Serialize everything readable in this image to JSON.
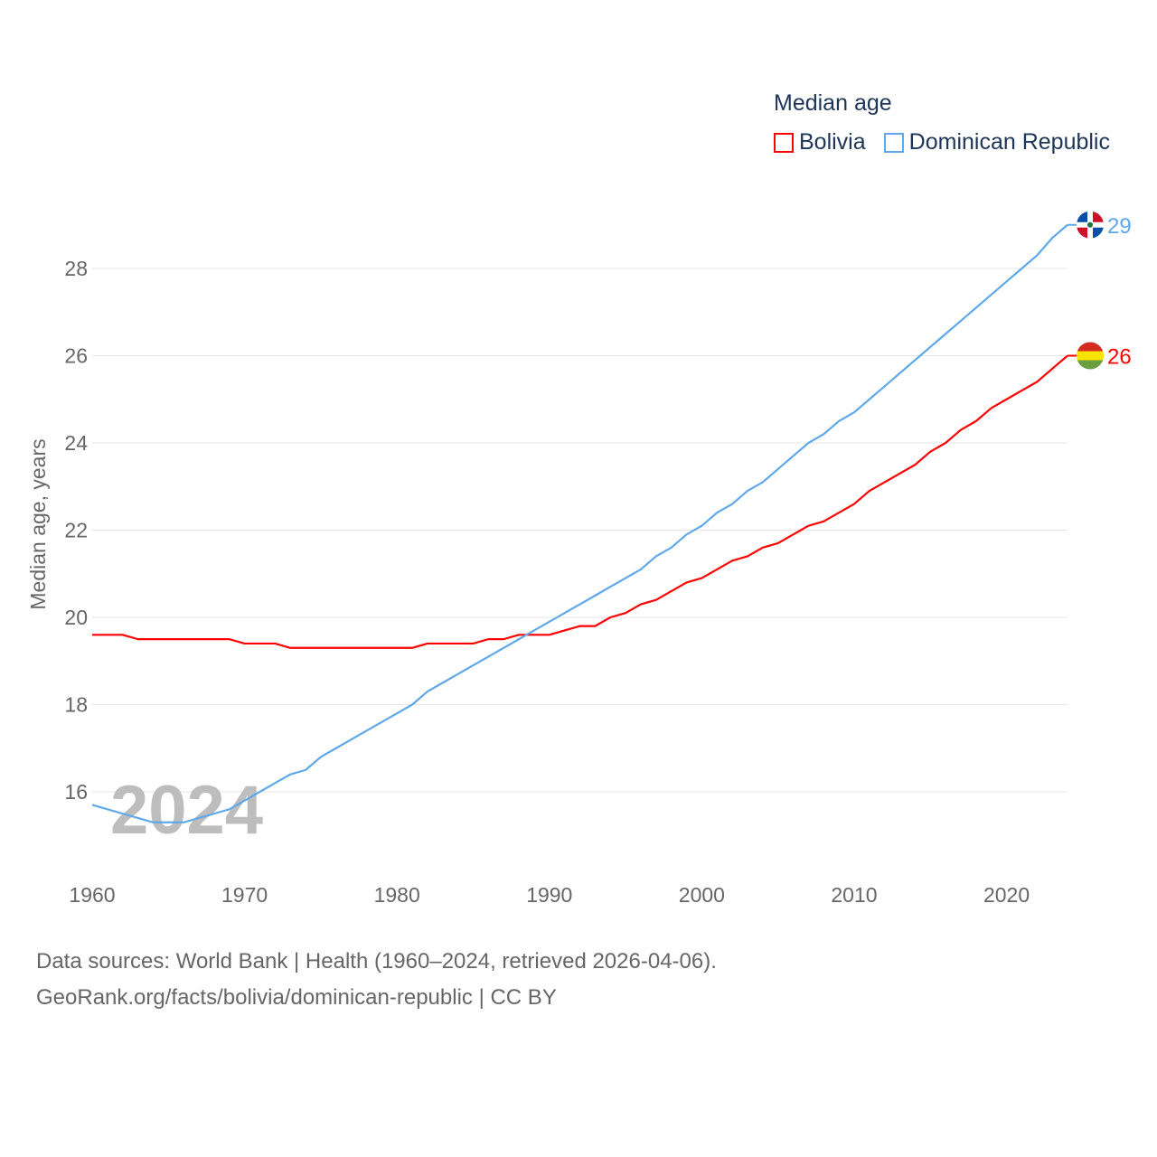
{
  "chart_data": {
    "type": "line",
    "title": "Median age",
    "ylabel": "Median age, years",
    "xlabel": "",
    "xlim": [
      1960,
      2024
    ],
    "ylim": [
      14.6,
      29.4
    ],
    "xticks": [
      1960,
      1970,
      1980,
      1990,
      2000,
      2010,
      2020
    ],
    "yticks": [
      16,
      18,
      20,
      22,
      24,
      26,
      28
    ],
    "grid": true,
    "legend_position": "top-right",
    "year_watermark": "2024",
    "x": [
      1960,
      1961,
      1962,
      1963,
      1964,
      1965,
      1966,
      1967,
      1968,
      1969,
      1970,
      1971,
      1972,
      1973,
      1974,
      1975,
      1976,
      1977,
      1978,
      1979,
      1980,
      1981,
      1982,
      1983,
      1984,
      1985,
      1986,
      1987,
      1988,
      1989,
      1990,
      1991,
      1992,
      1993,
      1994,
      1995,
      1996,
      1997,
      1998,
      1999,
      2000,
      2001,
      2002,
      2003,
      2004,
      2005,
      2006,
      2007,
      2008,
      2009,
      2010,
      2011,
      2012,
      2013,
      2014,
      2015,
      2016,
      2017,
      2018,
      2019,
      2020,
      2021,
      2022,
      2023,
      2024
    ],
    "series": [
      {
        "name": "Bolivia",
        "color": "#ff0000",
        "end_label": "26",
        "flag": "bolivia-flag",
        "values": [
          19.6,
          19.6,
          19.6,
          19.5,
          19.5,
          19.5,
          19.5,
          19.5,
          19.5,
          19.5,
          19.4,
          19.4,
          19.4,
          19.3,
          19.3,
          19.3,
          19.3,
          19.3,
          19.3,
          19.3,
          19.3,
          19.3,
          19.4,
          19.4,
          19.4,
          19.4,
          19.5,
          19.5,
          19.6,
          19.6,
          19.6,
          19.7,
          19.8,
          19.8,
          20.0,
          20.1,
          20.3,
          20.4,
          20.6,
          20.8,
          20.9,
          21.1,
          21.3,
          21.4,
          21.6,
          21.7,
          21.9,
          22.1,
          22.2,
          22.4,
          22.6,
          22.9,
          23.1,
          23.3,
          23.5,
          23.8,
          24.0,
          24.3,
          24.5,
          24.8,
          25.0,
          25.2,
          25.4,
          25.7,
          26.0
        ]
      },
      {
        "name": "Dominican Republic",
        "color": "#5fa8ea",
        "end_label": "29",
        "flag": "dominican-republic-flag",
        "values": [
          15.7,
          15.6,
          15.5,
          15.4,
          15.3,
          15.3,
          15.3,
          15.4,
          15.5,
          15.6,
          15.8,
          16.0,
          16.2,
          16.4,
          16.5,
          16.8,
          17.0,
          17.2,
          17.4,
          17.6,
          17.8,
          18.0,
          18.3,
          18.5,
          18.7,
          18.9,
          19.1,
          19.3,
          19.5,
          19.7,
          19.9,
          20.1,
          20.3,
          20.5,
          20.7,
          20.9,
          21.1,
          21.4,
          21.6,
          21.9,
          22.1,
          22.4,
          22.6,
          22.9,
          23.1,
          23.4,
          23.7,
          24.0,
          24.2,
          24.5,
          24.7,
          25.0,
          25.3,
          25.6,
          25.9,
          26.2,
          26.5,
          26.8,
          27.1,
          27.4,
          27.7,
          28.0,
          28.3,
          28.7,
          29.0
        ]
      }
    ]
  },
  "source": {
    "line1": "Data sources: World Bank | Health (1960–2024, retrieved 2026-04-06).",
    "line2": "GeoRank.org/facts/bolivia/dominican-republic | CC BY"
  }
}
